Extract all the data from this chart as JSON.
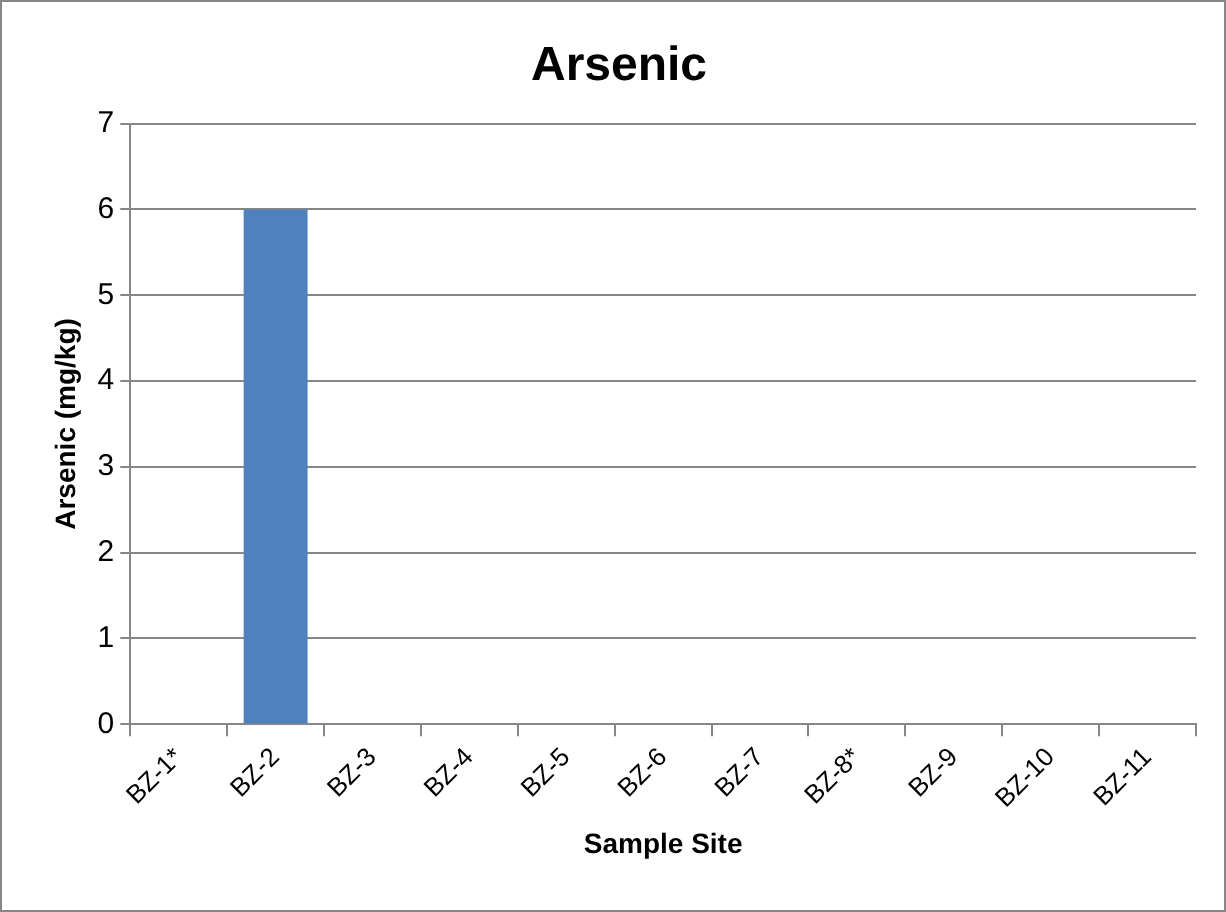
{
  "chart_data": {
    "type": "bar",
    "title": "Arsenic",
    "xlabel": "Sample Site",
    "ylabel": "Arsenic (mg/kg)",
    "categories": [
      "BZ-1*",
      "BZ-2",
      "BZ-3",
      "BZ-4",
      "BZ-5",
      "BZ-6",
      "BZ-7",
      "BZ-8*",
      "BZ-9",
      "BZ-10",
      "BZ-11"
    ],
    "values": [
      0,
      6,
      0,
      0,
      0,
      0,
      0,
      0,
      0,
      0,
      0
    ],
    "color": "#4f81bd",
    "ylim": [
      0,
      7
    ],
    "yticks": [
      0,
      1,
      2,
      3,
      4,
      5,
      6,
      7
    ],
    "grid": "y",
    "legend": false
  }
}
